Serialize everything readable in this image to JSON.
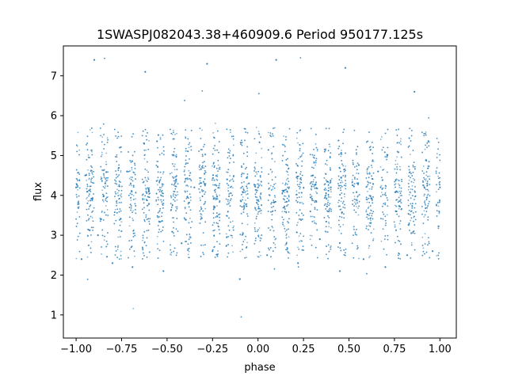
{
  "chart_data": {
    "type": "scatter",
    "title": "1SWASPJ082043.38+460909.6 Period 950177.125s",
    "xlabel": "phase",
    "ylabel": "flux",
    "xlim": [
      -1.07,
      1.09
    ],
    "ylim": [
      0.42,
      7.75
    ],
    "grid": false,
    "legend": "none",
    "point_color": "#1f77b4",
    "x_ticks": [
      {
        "value": -1.0,
        "label": "−1.00"
      },
      {
        "value": -0.75,
        "label": "−0.75"
      },
      {
        "value": -0.5,
        "label": "−0.50"
      },
      {
        "value": -0.25,
        "label": "−0.25"
      },
      {
        "value": 0.0,
        "label": "0.00"
      },
      {
        "value": 0.25,
        "label": "0.25"
      },
      {
        "value": 0.5,
        "label": "0.50"
      },
      {
        "value": 0.75,
        "label": "0.75"
      },
      {
        "value": 1.0,
        "label": "1.00"
      }
    ],
    "y_ticks": [
      {
        "value": 1,
        "label": "1"
      },
      {
        "value": 2,
        "label": "2"
      },
      {
        "value": 3,
        "label": "3"
      },
      {
        "value": 4,
        "label": "4"
      },
      {
        "value": 5,
        "label": "5"
      },
      {
        "value": 6,
        "label": "6"
      },
      {
        "value": 7,
        "label": "7"
      }
    ],
    "series": [
      {
        "x_range": [
          -1.0,
          1.0
        ],
        "typical_flux_range": [
          2.0,
          5.5
        ],
        "median_flux": 4.2,
        "band_pattern": "repeated vertical bands of points, each band spanning roughly flux 2.2 to 5.4, with sparse outliers between 0.7 and 7.5",
        "sample_points": [
          {
            "x": -1.0,
            "y": 4.2
          },
          {
            "x": -0.97,
            "y": 2.4
          },
          {
            "x": -0.95,
            "y": 4.5
          },
          {
            "x": -0.9,
            "y": 7.4
          },
          {
            "x": -0.88,
            "y": 3.0
          },
          {
            "x": -0.84,
            "y": 4.3
          },
          {
            "x": -0.8,
            "y": 2.3
          },
          {
            "x": -0.72,
            "y": 4.6
          },
          {
            "x": -0.69,
            "y": 2.2
          },
          {
            "x": -0.62,
            "y": 7.1
          },
          {
            "x": -0.6,
            "y": 4.1
          },
          {
            "x": -0.52,
            "y": 2.1
          },
          {
            "x": -0.45,
            "y": 4.4
          },
          {
            "x": -0.42,
            "y": 2.8
          },
          {
            "x": -0.35,
            "y": 4.2
          },
          {
            "x": -0.28,
            "y": 7.3
          },
          {
            "x": -0.25,
            "y": 2.6
          },
          {
            "x": -0.17,
            "y": 4.4
          },
          {
            "x": -0.1,
            "y": 1.9
          },
          {
            "x": -0.05,
            "y": 4.3
          },
          {
            "x": 0.0,
            "y": 4.2
          },
          {
            "x": 0.05,
            "y": 2.5
          },
          {
            "x": 0.1,
            "y": 7.4
          },
          {
            "x": 0.16,
            "y": 4.1
          },
          {
            "x": 0.22,
            "y": 2.3
          },
          {
            "x": 0.3,
            "y": 4.5
          },
          {
            "x": 0.34,
            "y": 2.9
          },
          {
            "x": 0.4,
            "y": 4.2
          },
          {
            "x": 0.45,
            "y": 2.1
          },
          {
            "x": 0.48,
            "y": 7.2
          },
          {
            "x": 0.55,
            "y": 4.3
          },
          {
            "x": 0.58,
            "y": 2.4
          },
          {
            "x": 0.66,
            "y": 4.6
          },
          {
            "x": 0.7,
            "y": 2.2
          },
          {
            "x": 0.76,
            "y": 4.1
          },
          {
            "x": 0.82,
            "y": 2.5
          },
          {
            "x": 0.86,
            "y": 6.6
          },
          {
            "x": 0.93,
            "y": 4.3
          },
          {
            "x": 0.96,
            "y": 2.6
          },
          {
            "x": 1.0,
            "y": 4.2
          }
        ]
      }
    ]
  }
}
